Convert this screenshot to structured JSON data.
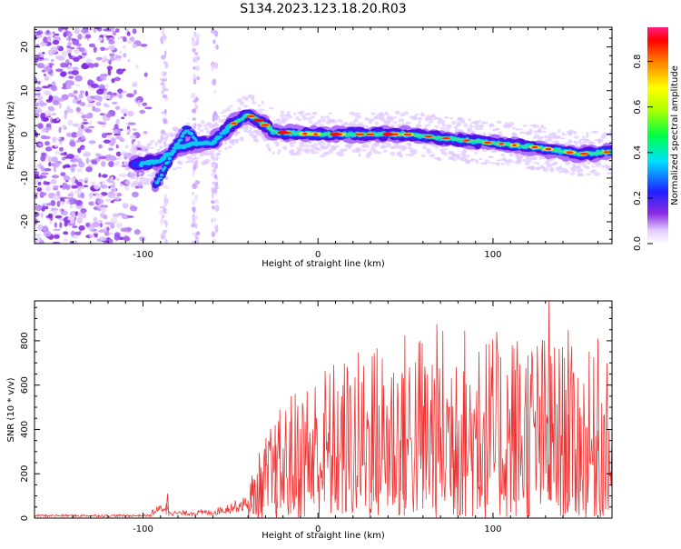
{
  "figure_title": "S134.2023.123.18.20.R03",
  "chart_data": [
    {
      "type": "heatmap",
      "xlabel": "Height of straight line (km)",
      "ylabel": "Frequency (Hz)",
      "xlim": [
        -162,
        168
      ],
      "ylim": [
        -25,
        24.5
      ],
      "x_ticks": [
        -100,
        0,
        100
      ],
      "y_ticks": [
        -20,
        -10,
        0,
        10,
        20
      ],
      "grid": false,
      "colorbar": {
        "label": "Normalized spectral amplitude",
        "range": [
          0,
          0.95
        ],
        "ticks": [
          0.0,
          0.2,
          0.4,
          0.6,
          0.8
        ],
        "colormap": "rainbow"
      },
      "ridge": {
        "description_points": [
          {
            "x": -105,
            "y": -7
          },
          {
            "x": -90,
            "y": -6
          },
          {
            "x": -80,
            "y": -3
          },
          {
            "x": -70,
            "y": -2
          },
          {
            "x": -60,
            "y": -2
          },
          {
            "x": -50,
            "y": 2
          },
          {
            "x": -40,
            "y": 4.5
          },
          {
            "x": -33,
            "y": 3
          },
          {
            "x": -25,
            "y": 0.5
          },
          {
            "x": 0,
            "y": 0
          },
          {
            "x": 25,
            "y": 0
          },
          {
            "x": 50,
            "y": 0
          },
          {
            "x": 75,
            "y": -1
          },
          {
            "x": 100,
            "y": -2
          },
          {
            "x": 125,
            "y": -3
          },
          {
            "x": 150,
            "y": -4.5
          },
          {
            "x": 168,
            "y": -4
          }
        ],
        "secondary_points": [
          {
            "x": -93,
            "y": -12
          },
          {
            "x": -88,
            "y": -8
          },
          {
            "x": -82,
            "y": -3
          },
          {
            "x": -75,
            "y": 1
          },
          {
            "x": -68,
            "y": -2
          }
        ]
      },
      "noise_region_x": [
        -162,
        -100
      ],
      "streaks_x": [
        -88,
        -70,
        -59
      ]
    },
    {
      "type": "line",
      "xlabel": "Height of straight line (km)",
      "ylabel": "SNR (10 * v/v)",
      "xlim": [
        -162,
        168
      ],
      "ylim": [
        0,
        980
      ],
      "x_ticks": [
        -100,
        0,
        100
      ],
      "y_ticks": [
        0,
        200,
        400,
        600,
        800
      ],
      "grid": false,
      "color": "#ee3333",
      "envelope": [
        {
          "x": -162,
          "y": 5
        },
        {
          "x": -100,
          "y": 10
        },
        {
          "x": -87,
          "y": 60
        },
        {
          "x": -83,
          "y": 25
        },
        {
          "x": -60,
          "y": 30
        },
        {
          "x": -40,
          "y": 80
        },
        {
          "x": -30,
          "y": 180
        },
        {
          "x": -20,
          "y": 250
        },
        {
          "x": -10,
          "y": 300
        },
        {
          "x": 0,
          "y": 330
        },
        {
          "x": 20,
          "y": 360
        },
        {
          "x": 40,
          "y": 400
        },
        {
          "x": 60,
          "y": 420
        },
        {
          "x": 80,
          "y": 430
        },
        {
          "x": 100,
          "y": 400
        },
        {
          "x": 120,
          "y": 420
        },
        {
          "x": 140,
          "y": 380
        },
        {
          "x": 160,
          "y": 350
        },
        {
          "x": 168,
          "y": 330
        }
      ],
      "peaks": [
        {
          "x": -86,
          "y": 110
        },
        {
          "x": -38,
          "y": 75
        },
        {
          "x": -33,
          "y": 200
        },
        {
          "x": -24,
          "y": 330
        },
        {
          "x": -3,
          "y": 400
        },
        {
          "x": 9,
          "y": 550
        },
        {
          "x": 31,
          "y": 730
        },
        {
          "x": 48,
          "y": 650
        },
        {
          "x": 61,
          "y": 660
        },
        {
          "x": 79,
          "y": 680
        },
        {
          "x": 92,
          "y": 750
        },
        {
          "x": 111,
          "y": 780
        },
        {
          "x": 132,
          "y": 980
        },
        {
          "x": 143,
          "y": 850
        },
        {
          "x": 160,
          "y": 810
        }
      ]
    }
  ]
}
